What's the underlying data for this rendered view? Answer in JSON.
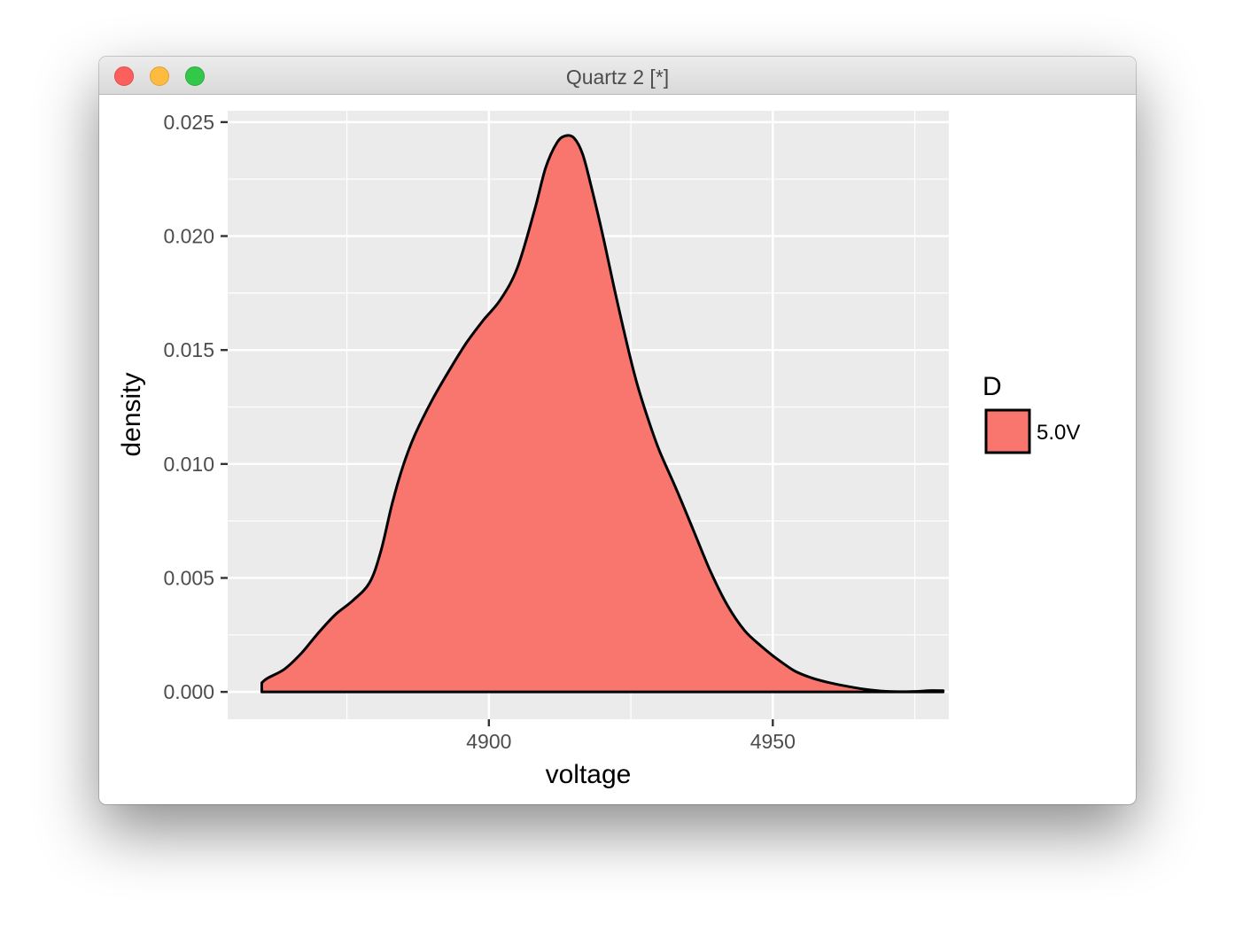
{
  "window": {
    "title": "Quartz 2 [*]"
  },
  "colors": {
    "panel_background": "#ebebeb",
    "grid": "#ffffff",
    "fill": "#f8766d",
    "outline": "#000000"
  },
  "chart_data": {
    "type": "area",
    "geom": "density",
    "title": "",
    "xlabel": "voltage",
    "ylabel": "density",
    "xlim": [
      4854,
      4981
    ],
    "ylim": [
      -0.0012,
      0.0255
    ],
    "x_ticks": [
      4900,
      4950
    ],
    "x_tick_labels": [
      "4900",
      "4950"
    ],
    "y_ticks": [
      0,
      0.005,
      0.01,
      0.015,
      0.02,
      0.025
    ],
    "y_tick_labels": [
      "0.000",
      "0.005",
      "0.010",
      "0.015",
      "0.020",
      "0.025"
    ],
    "grid": true,
    "legend": {
      "title": "D",
      "position": "right",
      "entries": [
        "5.0V"
      ]
    },
    "series": [
      {
        "name": "5.0V",
        "x": [
          4860,
          4861,
          4864,
          4867,
          4870,
          4873,
          4876,
          4879,
          4881,
          4883,
          4885,
          4887,
          4890,
          4893,
          4896,
          4899,
          4902,
          4905,
          4908,
          4910,
          4912,
          4913.5,
          4915,
          4916.5,
          4918,
          4920,
          4922,
          4924,
          4926,
          4928,
          4930,
          4933,
          4936,
          4939,
          4942,
          4945,
          4948,
          4951,
          4954,
          4957,
          4960,
          4963,
          4966,
          4969,
          4972,
          4975,
          4978,
          4980
        ],
        "y": [
          0.0004,
          0.0006,
          0.001,
          0.0017,
          0.0026,
          0.0034,
          0.004,
          0.0048,
          0.0062,
          0.0083,
          0.01,
          0.0113,
          0.0128,
          0.0141,
          0.0153,
          0.0163,
          0.0172,
          0.0186,
          0.0211,
          0.023,
          0.0241,
          0.0244,
          0.0243,
          0.0236,
          0.0222,
          0.0201,
          0.0178,
          0.0156,
          0.0136,
          0.012,
          0.0106,
          0.0089,
          0.0071,
          0.0053,
          0.0038,
          0.0027,
          0.002,
          0.0014,
          0.0009,
          0.0006,
          0.0004,
          0.00025,
          0.00012,
          4e-05,
          1e-05,
          2e-05,
          6e-05,
          5e-05
        ]
      }
    ]
  }
}
